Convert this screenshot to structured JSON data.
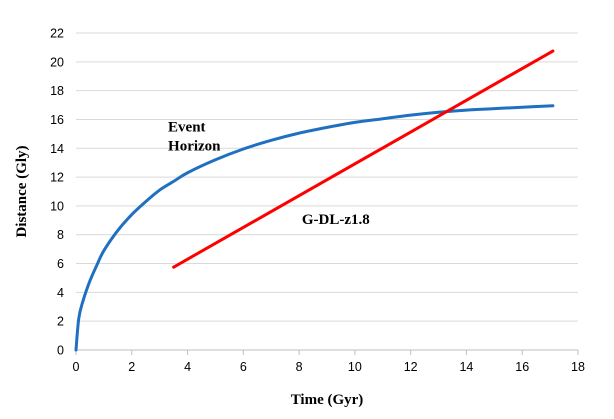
{
  "chart_data": {
    "type": "line",
    "title": "",
    "xlabel": "Time (Gyr)",
    "ylabel": "Distance (Gly)",
    "xlim": [
      0,
      18
    ],
    "ylim": [
      0,
      22
    ],
    "x_ticks": [
      "0",
      "2",
      "4",
      "6",
      "8",
      "10",
      "12",
      "14",
      "16",
      "18"
    ],
    "y_ticks": [
      "0",
      "2",
      "4",
      "6",
      "8",
      "10",
      "12",
      "14",
      "16",
      "18",
      "20",
      "22"
    ],
    "grid": "horizontal",
    "legend": "none",
    "series": [
      {
        "name": "Event Horizon",
        "color": "#1F70C1",
        "x": [
          0,
          0.1,
          0.25,
          0.5,
          0.75,
          1,
          1.5,
          2,
          2.5,
          3,
          3.5,
          4,
          5,
          6,
          7,
          8,
          9,
          10,
          11,
          12,
          13,
          14,
          15,
          16,
          17.1
        ],
        "y": [
          0,
          2.2,
          3.4,
          4.8,
          5.9,
          6.9,
          8.3,
          9.4,
          10.3,
          11.1,
          11.7,
          12.3,
          13.2,
          13.95,
          14.55,
          15.05,
          15.45,
          15.8,
          16.05,
          16.3,
          16.5,
          16.65,
          16.75,
          16.85,
          16.95
        ],
        "label": {
          "line1": "Event",
          "line2": "Horizon",
          "x": 3.3,
          "y": 15.5
        }
      },
      {
        "name": "G-DL-z1.8",
        "color": "#FF0000",
        "x": [
          3.5,
          17.1
        ],
        "y": [
          5.75,
          20.75
        ],
        "label": {
          "text": "G-DL-z1.8",
          "x": 8.1,
          "y": 9.1
        }
      }
    ]
  }
}
